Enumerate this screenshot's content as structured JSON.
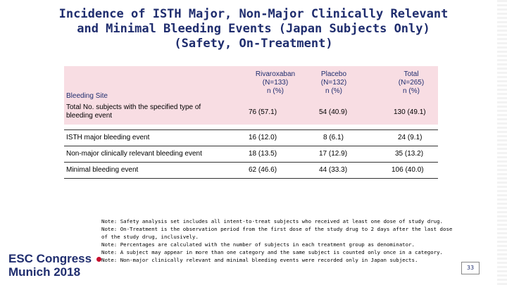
{
  "title": {
    "line1": "Incidence of ISTH Major, Non-Major Clinically Relevant",
    "line2": "and Minimal Bleeding Events (Japan Subjects Only)",
    "line3": "(Safety, On-Treatment)"
  },
  "table": {
    "site_label": "Bleeding Site",
    "columns": [
      {
        "name": "Rivaroxaban",
        "n": "(N=133)",
        "unit": "n (%)"
      },
      {
        "name": "Placebo",
        "n": "(N=132)",
        "unit": "n (%)"
      },
      {
        "name": "Total",
        "n": "(N=265)",
        "unit": "n (%)"
      }
    ],
    "total_row": {
      "label": "Total No. subjects with the specified type of bleeding event",
      "values": [
        "76 (57.1)",
        "54 (40.9)",
        "130 (49.1)"
      ]
    },
    "rows": [
      {
        "label": "ISTH major bleeding event",
        "values": [
          "16 (12.0)",
          "8 (6.1)",
          "24 (9.1)"
        ]
      },
      {
        "label": "Non-major clinically relevant bleeding event",
        "values": [
          "18 (13.5)",
          "17 (12.9)",
          "35 (13.2)"
        ]
      },
      {
        "label": "Minimal bleeding event",
        "values": [
          "62 (46.6)",
          "44 (33.3)",
          "106 (40.0)"
        ]
      }
    ]
  },
  "notes": [
    "Note: Safety analysis set includes all intent-to-treat subjects who received at least one dose of study drug.",
    "Note: On-Treatment is the observation period from the first dose of the study drug to 2 days after the last dose",
    "of the study drug, inclusively.",
    "Note: Percentages are calculated with the number of subjects in each treatment group as denominator.",
    "Note: A subject may appear in more than one category and the same subject is counted only once in a category.",
    "Note: Non-major clinically relevant and minimal bleeding events were recorded only in Japan subjects."
  ],
  "logo": {
    "line1": "ESC Congress",
    "line2": "Munich 2018"
  },
  "page_number": "33",
  "colors": {
    "title": "#1f2d6e",
    "header_bg": "#f8dde3",
    "logo_dot": "#c8102e"
  }
}
